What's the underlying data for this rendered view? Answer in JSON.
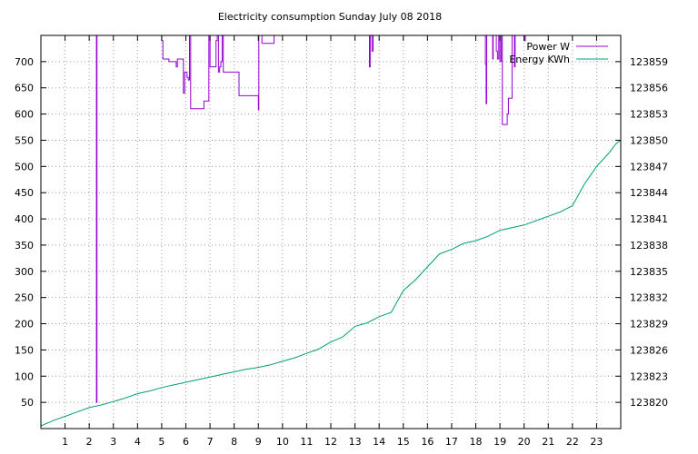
{
  "chart_data": {
    "type": "line",
    "title": "Electricity consumption Sunday July 08 2018",
    "xlim": [
      0,
      24
    ],
    "x_ticks": [
      1,
      2,
      3,
      4,
      5,
      6,
      7,
      8,
      9,
      10,
      11,
      12,
      13,
      14,
      15,
      16,
      17,
      18,
      19,
      20,
      21,
      22,
      23
    ],
    "y_left": {
      "label": "",
      "ylim": [
        0,
        750
      ],
      "ticks": [
        50,
        100,
        150,
        200,
        250,
        300,
        350,
        400,
        450,
        500,
        550,
        600,
        650,
        700
      ]
    },
    "y_right": {
      "label": "",
      "ylim": [
        123817,
        123862
      ],
      "ticks": [
        123820,
        123823,
        123826,
        123829,
        123832,
        123835,
        123838,
        123841,
        123844,
        123847,
        123850,
        123853,
        123856,
        123859
      ]
    },
    "grid": true,
    "legend_position": "top-right",
    "series": [
      {
        "name": "Power W",
        "axis": "left",
        "color": "#9400d3",
        "points": [
          [
            2.3,
            760
          ],
          [
            2.3,
            50
          ],
          [
            2.32,
            50
          ],
          [
            2.32,
            760
          ],
          [
            5.0,
            760
          ],
          [
            5.0,
            740
          ],
          [
            5.05,
            740
          ],
          [
            5.05,
            705
          ],
          [
            5.3,
            705
          ],
          [
            5.3,
            700
          ],
          [
            5.6,
            700
          ],
          [
            5.6,
            690
          ],
          [
            5.65,
            690
          ],
          [
            5.65,
            705
          ],
          [
            5.9,
            705
          ],
          [
            5.9,
            640
          ],
          [
            5.95,
            640
          ],
          [
            5.95,
            680
          ],
          [
            6.05,
            680
          ],
          [
            6.05,
            670
          ],
          [
            6.1,
            670
          ],
          [
            6.1,
            665
          ],
          [
            6.15,
            665
          ],
          [
            6.15,
            760
          ],
          [
            6.2,
            760
          ],
          [
            6.2,
            610
          ],
          [
            6.75,
            610
          ],
          [
            6.75,
            625
          ],
          [
            6.95,
            625
          ],
          [
            6.95,
            760
          ],
          [
            7.0,
            760
          ],
          [
            7.0,
            690
          ],
          [
            7.25,
            690
          ],
          [
            7.25,
            740
          ],
          [
            7.3,
            740
          ],
          [
            7.3,
            760
          ],
          [
            7.35,
            760
          ],
          [
            7.35,
            680
          ],
          [
            7.4,
            680
          ],
          [
            7.4,
            690
          ],
          [
            7.45,
            690
          ],
          [
            7.45,
            700
          ],
          [
            7.5,
            700
          ],
          [
            7.5,
            760
          ],
          [
            7.55,
            760
          ],
          [
            7.55,
            680
          ],
          [
            8.2,
            680
          ],
          [
            8.2,
            635
          ],
          [
            9.0,
            635
          ],
          [
            9.0,
            608
          ],
          [
            9.02,
            608
          ],
          [
            9.02,
            760
          ],
          [
            9.15,
            760
          ],
          [
            9.15,
            735
          ],
          [
            9.65,
            735
          ],
          [
            9.65,
            760
          ],
          [
            13.6,
            760
          ],
          [
            13.6,
            690
          ],
          [
            13.63,
            690
          ],
          [
            13.63,
            760
          ],
          [
            13.7,
            760
          ],
          [
            13.7,
            720
          ],
          [
            13.75,
            720
          ],
          [
            13.75,
            760
          ],
          [
            18.4,
            760
          ],
          [
            18.4,
            695
          ],
          [
            18.43,
            695
          ],
          [
            18.43,
            620
          ],
          [
            18.45,
            620
          ],
          [
            18.45,
            760
          ],
          [
            18.7,
            760
          ],
          [
            18.7,
            705
          ],
          [
            18.72,
            705
          ],
          [
            18.72,
            760
          ],
          [
            18.85,
            760
          ],
          [
            18.85,
            720
          ],
          [
            18.9,
            720
          ],
          [
            18.9,
            705
          ],
          [
            18.95,
            705
          ],
          [
            18.95,
            760
          ],
          [
            19.0,
            760
          ],
          [
            19.0,
            700
          ],
          [
            19.05,
            700
          ],
          [
            19.05,
            760
          ],
          [
            19.1,
            760
          ],
          [
            19.1,
            580
          ],
          [
            19.3,
            580
          ],
          [
            19.3,
            600
          ],
          [
            19.35,
            600
          ],
          [
            19.35,
            630
          ],
          [
            19.5,
            630
          ],
          [
            19.5,
            760
          ],
          [
            19.6,
            760
          ],
          [
            19.6,
            690
          ],
          [
            19.63,
            690
          ],
          [
            19.63,
            760
          ],
          [
            20.0,
            760
          ],
          [
            20.0,
            740
          ],
          [
            20.05,
            740
          ],
          [
            20.05,
            760
          ]
        ]
      },
      {
        "name": "Energy KWh",
        "axis": "right",
        "color": "#009e73",
        "points": [
          [
            0,
            123817.3
          ],
          [
            0.5,
            123817.9
          ],
          [
            1,
            123818.4
          ],
          [
            1.5,
            123818.9
          ],
          [
            2,
            123819.4
          ],
          [
            2.5,
            123819.7
          ],
          [
            3,
            123820.1
          ],
          [
            3.5,
            123820.5
          ],
          [
            4,
            123821.0
          ],
          [
            4.5,
            123821.3
          ],
          [
            5,
            123821.7
          ],
          [
            5.5,
            123822.0
          ],
          [
            6,
            123822.3
          ],
          [
            6.5,
            123822.6
          ],
          [
            7,
            123822.9
          ],
          [
            7.5,
            123823.2
          ],
          [
            8,
            123823.5
          ],
          [
            8.5,
            123823.8
          ],
          [
            9,
            123824.0
          ],
          [
            9.5,
            123824.3
          ],
          [
            10,
            123824.7
          ],
          [
            10.5,
            123825.1
          ],
          [
            11,
            123825.6
          ],
          [
            11.5,
            123826.1
          ],
          [
            12,
            123826.9
          ],
          [
            12.5,
            123827.5
          ],
          [
            13,
            123828.7
          ],
          [
            13.5,
            123829.1
          ],
          [
            14,
            123829.8
          ],
          [
            14.5,
            123830.3
          ],
          [
            15,
            123832.8
          ],
          [
            15.5,
            123834.0
          ],
          [
            16,
            123835.5
          ],
          [
            16.5,
            123837.0
          ],
          [
            17,
            123837.5
          ],
          [
            17.5,
            123838.2
          ],
          [
            18,
            123838.5
          ],
          [
            18.5,
            123839.0
          ],
          [
            19,
            123839.7
          ],
          [
            19.5,
            123840.0
          ],
          [
            20,
            123840.3
          ],
          [
            20.5,
            123840.8
          ],
          [
            21,
            123841.3
          ],
          [
            21.5,
            123841.8
          ],
          [
            22,
            123842.5
          ],
          [
            22.5,
            123845.0
          ],
          [
            23,
            123847.0
          ],
          [
            23.5,
            123848.5
          ],
          [
            23.8,
            123849.6
          ],
          [
            24,
            123850.0
          ]
        ]
      }
    ]
  }
}
